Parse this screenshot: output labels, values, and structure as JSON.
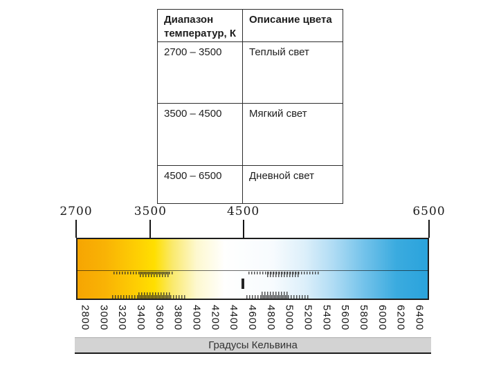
{
  "table": {
    "header": {
      "col1": "Диапазон температур, К",
      "col2": "Описание цвета"
    },
    "rows": [
      {
        "range": "2700 – 3500",
        "description": "Теплый  свет"
      },
      {
        "range": "3500 – 4500",
        "description": "Мягкий свет"
      },
      {
        "range": "4500 – 6500",
        "description": "Дневной свет"
      }
    ]
  },
  "scale": {
    "unit_label": "Градусы Кельвина",
    "min_k": 2700,
    "max_k": 6500,
    "top_labels": [
      2700,
      3500,
      4500,
      6500
    ],
    "bottom_labels": [
      2800,
      3000,
      3200,
      3400,
      3600,
      3800,
      4000,
      4200,
      4400,
      4600,
      4800,
      5000,
      5200,
      5400,
      5600,
      5800,
      6000,
      6200,
      6400
    ],
    "gradient_stops": [
      {
        "pos": 0,
        "color": "#F6A502"
      },
      {
        "pos": 8,
        "color": "#F9B305"
      },
      {
        "pos": 17,
        "color": "#FECF03"
      },
      {
        "pos": 22,
        "color": "#FFDF00"
      },
      {
        "pos": 27,
        "color": "#FAE96B"
      },
      {
        "pos": 34,
        "color": "#FDF8CF"
      },
      {
        "pos": 42,
        "color": "#FFFFFE"
      },
      {
        "pos": 56,
        "color": "#F7FBFE"
      },
      {
        "pos": 65,
        "color": "#DCEFFA"
      },
      {
        "pos": 73,
        "color": "#B0DCF4"
      },
      {
        "pos": 82,
        "color": "#72C2EA"
      },
      {
        "pos": 91,
        "color": "#3BABDF"
      },
      {
        "pos": 100,
        "color": "#2AA3DC"
      }
    ],
    "colors": {
      "bar_border": "#1C1C1C",
      "footer_background": "#D3D3D3",
      "tick_color": "#151515"
    }
  }
}
